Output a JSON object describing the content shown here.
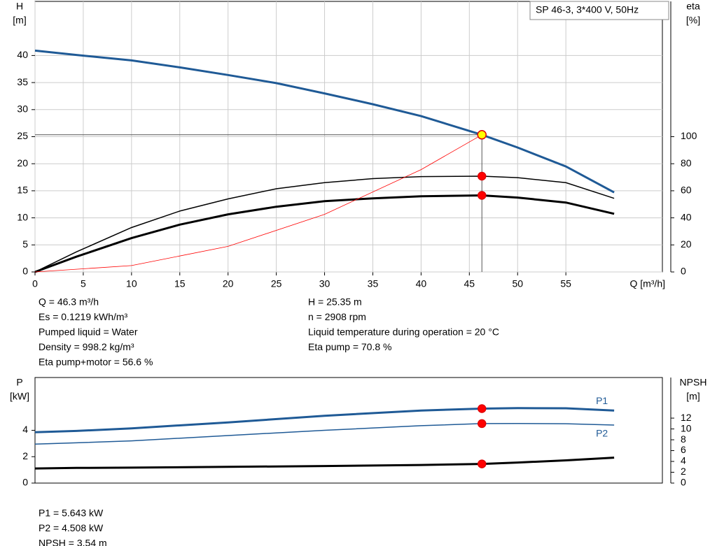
{
  "chart_data": [
    {
      "type": "line",
      "title": "SP 46-3, 3*400 V, 50Hz",
      "x_label": "Q [m³/h]",
      "y_label": "H",
      "y_unit": "[m]",
      "y2_label": "eta",
      "y2_unit": "[%]",
      "xlim": [
        0,
        65
      ],
      "xticks": [
        0,
        5,
        10,
        15,
        20,
        25,
        30,
        35,
        40,
        45,
        50,
        55
      ],
      "ylim": [
        0,
        50
      ],
      "yticks": [
        0,
        5,
        10,
        15,
        20,
        25,
        30,
        35,
        40
      ],
      "y2lim": [
        0,
        200
      ],
      "y2ticks": [
        0,
        20,
        40,
        60,
        80,
        100
      ],
      "grid": true,
      "series": [
        {
          "color": "#1f5a96",
          "line_width": 3,
          "x": [
            0,
            4.3,
            10,
            15,
            20,
            25,
            30,
            35,
            40,
            46.3,
            50,
            55,
            60
          ],
          "values": [
            40.9,
            40.1,
            39.1,
            37.8,
            36.4,
            34.9,
            33.0,
            31.0,
            28.8,
            25.35,
            23.0,
            19.5,
            14.7
          ]
        },
        {
          "color": "#000000",
          "line_width": 1.5,
          "axis": "y2",
          "x": [
            0,
            4.3,
            10,
            15,
            20,
            25,
            30,
            35,
            40,
            46.3,
            50,
            55,
            60
          ],
          "values": [
            0,
            14.9,
            32.8,
            45,
            54,
            61.5,
            66,
            69,
            70.5,
            70.8,
            69.7,
            66,
            54.4
          ]
        },
        {
          "color": "#000000",
          "line_width": 3,
          "axis": "y2",
          "x": [
            0,
            4.3,
            10,
            15,
            20,
            25,
            30,
            35,
            40,
            46.3,
            50,
            55,
            60
          ],
          "values": [
            0,
            11.3,
            25,
            35,
            42.6,
            48.2,
            52.3,
            54.4,
            55.9,
            56.6,
            55,
            51.3,
            43
          ]
        },
        {
          "color": "#ff0000",
          "line_width": 0.8,
          "x": [
            0,
            10,
            20,
            30,
            40,
            46.3
          ],
          "values": [
            0,
            1.18,
            4.73,
            10.64,
            18.92,
            25.35
          ]
        }
      ],
      "operating_point": {
        "x": 46.3,
        "markers": [
          {
            "y": 25.35,
            "fill": "#ffff00"
          },
          {
            "y": 70.8,
            "axis": "y2",
            "fill": "#ff0000"
          },
          {
            "y": 56.6,
            "axis": "y2",
            "fill": "#ff0000"
          }
        ]
      },
      "info_left": [
        "Q = 46.3 m³/h",
        "Es = 0.1219 kWh/m³",
        "Pumped liquid = Water",
        "Density = 998.2 kg/m³",
        "Eta pump+motor = 56.6 %"
      ],
      "info_right": [
        "H = 25.35 m",
        "n = 2908 rpm",
        "Liquid temperature during operation = 20 °C",
        "Eta pump = 70.8 %"
      ]
    },
    {
      "type": "line",
      "y_label": "P",
      "y_unit": "[kW]",
      "y2_label": "NPSH",
      "y2_unit": "[m]",
      "xlim": [
        0,
        65
      ],
      "ylim": [
        0,
        8
      ],
      "yticks": [
        0,
        2,
        4
      ],
      "y2lim": [
        0,
        19.5
      ],
      "y2ticks": [
        0,
        2,
        4,
        6,
        8,
        10,
        12
      ],
      "grid": false,
      "series": [
        {
          "name": "P1",
          "color": "#1f5a96",
          "line_width": 3,
          "x": [
            0,
            4.3,
            10,
            20,
            30,
            40,
            46.3,
            50,
            55,
            60
          ],
          "values": [
            3.85,
            3.95,
            4.15,
            4.6,
            5.1,
            5.5,
            5.643,
            5.68,
            5.67,
            5.5
          ]
        },
        {
          "name": "P2",
          "color": "#1f5a96",
          "line_width": 1.5,
          "x": [
            0,
            4.3,
            10,
            20,
            30,
            40,
            46.3,
            50,
            55,
            60
          ],
          "values": [
            2.95,
            3.05,
            3.2,
            3.6,
            4.0,
            4.35,
            4.508,
            4.52,
            4.5,
            4.4
          ]
        },
        {
          "color": "#000000",
          "line_width": 3,
          "axis": "y2",
          "x": [
            0,
            4.3,
            10,
            20,
            30,
            40,
            46.3,
            50,
            55,
            60
          ],
          "values": [
            2.7,
            2.8,
            2.85,
            3.0,
            3.15,
            3.35,
            3.54,
            3.8,
            4.2,
            4.7
          ]
        }
      ],
      "operating_point": {
        "x": 46.3,
        "markers": [
          {
            "y": 5.643,
            "fill": "#ff0000"
          },
          {
            "y": 4.508,
            "fill": "#ff0000"
          },
          {
            "y": 3.54,
            "axis": "y2",
            "fill": "#ff0000"
          }
        ]
      },
      "info_left": [
        "P1 = 5.643 kW",
        "P2 = 4.508 kW",
        "NPSH = 3.54 m"
      ]
    }
  ]
}
